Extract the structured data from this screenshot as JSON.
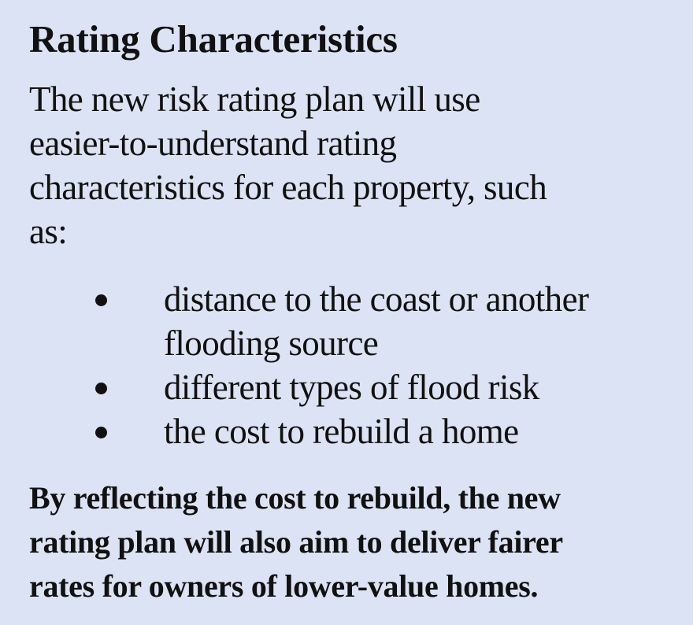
{
  "title": "Rating Characteristics",
  "intro_lines": [
    "The new risk rating plan will use",
    "easier-to-understand rating",
    "characteristics for each property, such",
    "as:"
  ],
  "bullets": [
    {
      "lines": [
        "distance to the coast or another",
        "flooding source"
      ]
    },
    {
      "lines": [
        "different types of flood risk"
      ]
    },
    {
      "lines": [
        "the cost to rebuild a home"
      ]
    }
  ],
  "closing_lines": [
    "By reflecting the cost to rebuild, the new",
    "rating plan will also aim to deliver fairer",
    "rates for owners of lower-value homes."
  ],
  "colors": {
    "background": "#dce3f4",
    "text": "#111111"
  }
}
